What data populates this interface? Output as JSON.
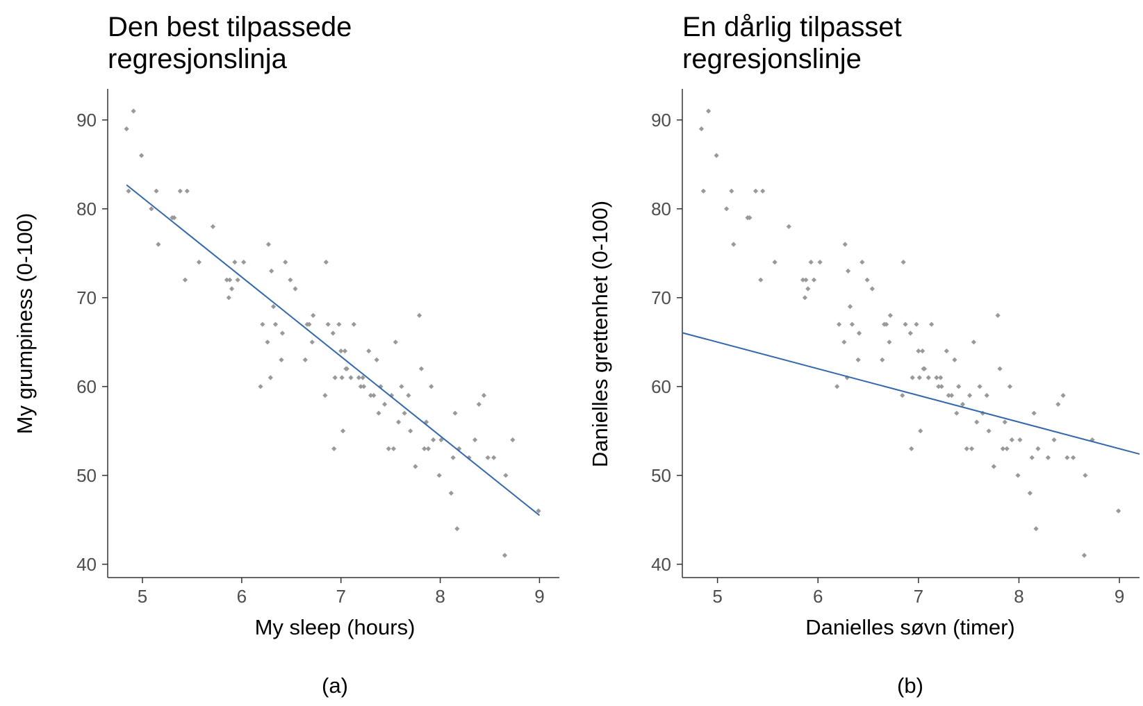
{
  "chart_data": [
    {
      "type": "scatter",
      "title_lines": [
        "Den best tilpassede",
        "regresjonslinja"
      ],
      "xlabel": "My sleep (hours)",
      "ylabel": "My grumpiness (0-100)",
      "caption": "(a)",
      "xlim": [
        4.65,
        9.2
      ],
      "ylim": [
        38.5,
        93.5
      ],
      "xticks": [
        5,
        6,
        7,
        8,
        9
      ],
      "yticks": [
        40,
        50,
        60,
        70,
        80,
        90
      ],
      "line": {
        "intercept": 125.96,
        "slope": -8.94,
        "x_from": 4.84,
        "x_to": 9.0,
        "color": "#3366aa"
      },
      "points": [
        [
          4.84,
          89
        ],
        [
          4.86,
          82
        ],
        [
          4.91,
          91
        ],
        [
          4.99,
          86
        ],
        [
          5.09,
          80
        ],
        [
          5.14,
          82
        ],
        [
          5.16,
          76
        ],
        [
          5.3,
          79
        ],
        [
          5.32,
          79
        ],
        [
          5.38,
          82
        ],
        [
          5.43,
          72
        ],
        [
          5.45,
          82
        ],
        [
          5.57,
          74
        ],
        [
          5.71,
          78
        ],
        [
          5.85,
          72
        ],
        [
          5.87,
          70
        ],
        [
          5.88,
          72
        ],
        [
          5.9,
          71
        ],
        [
          5.93,
          74
        ],
        [
          5.96,
          72
        ],
        [
          6.02,
          74
        ],
        [
          6.19,
          60
        ],
        [
          6.21,
          67
        ],
        [
          6.26,
          65
        ],
        [
          6.27,
          76
        ],
        [
          6.29,
          61
        ],
        [
          6.3,
          73
        ],
        [
          6.32,
          69
        ],
        [
          6.34,
          67
        ],
        [
          6.4,
          63
        ],
        [
          6.41,
          66
        ],
        [
          6.44,
          74
        ],
        [
          6.49,
          72
        ],
        [
          6.54,
          71
        ],
        [
          6.64,
          63
        ],
        [
          6.66,
          67
        ],
        [
          6.68,
          67
        ],
        [
          6.71,
          65
        ],
        [
          6.72,
          68
        ],
        [
          6.85,
          74
        ],
        [
          6.87,
          67
        ],
        [
          6.84,
          59
        ],
        [
          6.92,
          66
        ],
        [
          6.93,
          53
        ],
        [
          6.94,
          61
        ],
        [
          6.98,
          67
        ],
        [
          7.0,
          64
        ],
        [
          7.02,
          55
        ],
        [
          7.01,
          61
        ],
        [
          7.04,
          64
        ],
        [
          7.05,
          62
        ],
        [
          7.06,
          62
        ],
        [
          7.1,
          61
        ],
        [
          7.13,
          67
        ],
        [
          7.18,
          61
        ],
        [
          7.2,
          60
        ],
        [
          7.22,
          61
        ],
        [
          7.23,
          60
        ],
        [
          7.28,
          64
        ],
        [
          7.3,
          59
        ],
        [
          7.33,
          59
        ],
        [
          7.36,
          63
        ],
        [
          7.38,
          57
        ],
        [
          7.4,
          60
        ],
        [
          7.44,
          58
        ],
        [
          7.48,
          53
        ],
        [
          7.51,
          59
        ],
        [
          7.53,
          53
        ],
        [
          7.55,
          65
        ],
        [
          7.58,
          56
        ],
        [
          7.61,
          60
        ],
        [
          7.64,
          57
        ],
        [
          7.68,
          59
        ],
        [
          7.7,
          55
        ],
        [
          7.75,
          51
        ],
        [
          7.79,
          68
        ],
        [
          7.81,
          62
        ],
        [
          7.84,
          53
        ],
        [
          7.86,
          56
        ],
        [
          7.88,
          53
        ],
        [
          7.91,
          60
        ],
        [
          7.93,
          54
        ],
        [
          7.99,
          50
        ],
        [
          8.01,
          54
        ],
        [
          8.11,
          48
        ],
        [
          8.13,
          52
        ],
        [
          8.15,
          57
        ],
        [
          8.17,
          44
        ],
        [
          8.19,
          53
        ],
        [
          8.29,
          52
        ],
        [
          8.35,
          54
        ],
        [
          8.39,
          58
        ],
        [
          8.44,
          59
        ],
        [
          8.48,
          52
        ],
        [
          8.54,
          52
        ],
        [
          8.65,
          41
        ],
        [
          8.66,
          50
        ],
        [
          8.73,
          54
        ],
        [
          8.99,
          46
        ]
      ]
    },
    {
      "type": "scatter",
      "title_lines": [
        "En dårlig tilpasset",
        "regresjonslinje"
      ],
      "xlabel": "Danielles søvn (timer)",
      "ylabel": "Danielles grettenhet (0-100)",
      "caption": "(b)",
      "xlim": [
        4.65,
        9.2
      ],
      "ylim": [
        38.5,
        93.5
      ],
      "xticks": [
        5,
        6,
        7,
        8,
        9
      ],
      "yticks": [
        40,
        50,
        60,
        70,
        80,
        90
      ],
      "line": {
        "intercept": 80.0,
        "slope": -3.0,
        "x_from": 4.65,
        "x_to": 9.2,
        "color": "#3366aa"
      },
      "points": [
        [
          4.84,
          89
        ],
        [
          4.86,
          82
        ],
        [
          4.91,
          91
        ],
        [
          4.99,
          86
        ],
        [
          5.09,
          80
        ],
        [
          5.14,
          82
        ],
        [
          5.16,
          76
        ],
        [
          5.3,
          79
        ],
        [
          5.32,
          79
        ],
        [
          5.38,
          82
        ],
        [
          5.43,
          72
        ],
        [
          5.45,
          82
        ],
        [
          5.57,
          74
        ],
        [
          5.71,
          78
        ],
        [
          5.85,
          72
        ],
        [
          5.87,
          70
        ],
        [
          5.88,
          72
        ],
        [
          5.9,
          71
        ],
        [
          5.93,
          74
        ],
        [
          5.96,
          72
        ],
        [
          6.02,
          74
        ],
        [
          6.19,
          60
        ],
        [
          6.21,
          67
        ],
        [
          6.26,
          65
        ],
        [
          6.27,
          76
        ],
        [
          6.29,
          61
        ],
        [
          6.3,
          73
        ],
        [
          6.32,
          69
        ],
        [
          6.34,
          67
        ],
        [
          6.4,
          63
        ],
        [
          6.41,
          66
        ],
        [
          6.44,
          74
        ],
        [
          6.49,
          72
        ],
        [
          6.54,
          71
        ],
        [
          6.64,
          63
        ],
        [
          6.66,
          67
        ],
        [
          6.68,
          67
        ],
        [
          6.71,
          65
        ],
        [
          6.72,
          68
        ],
        [
          6.85,
          74
        ],
        [
          6.87,
          67
        ],
        [
          6.84,
          59
        ],
        [
          6.92,
          66
        ],
        [
          6.93,
          53
        ],
        [
          6.94,
          61
        ],
        [
          6.98,
          67
        ],
        [
          7.0,
          64
        ],
        [
          7.02,
          55
        ],
        [
          7.01,
          61
        ],
        [
          7.04,
          64
        ],
        [
          7.05,
          62
        ],
        [
          7.06,
          62
        ],
        [
          7.1,
          61
        ],
        [
          7.13,
          67
        ],
        [
          7.18,
          61
        ],
        [
          7.2,
          60
        ],
        [
          7.22,
          61
        ],
        [
          7.23,
          60
        ],
        [
          7.28,
          64
        ],
        [
          7.3,
          59
        ],
        [
          7.33,
          59
        ],
        [
          7.36,
          63
        ],
        [
          7.38,
          57
        ],
        [
          7.4,
          60
        ],
        [
          7.44,
          58
        ],
        [
          7.48,
          53
        ],
        [
          7.51,
          59
        ],
        [
          7.53,
          53
        ],
        [
          7.55,
          65
        ],
        [
          7.58,
          56
        ],
        [
          7.61,
          60
        ],
        [
          7.64,
          57
        ],
        [
          7.68,
          59
        ],
        [
          7.7,
          55
        ],
        [
          7.75,
          51
        ],
        [
          7.79,
          68
        ],
        [
          7.81,
          62
        ],
        [
          7.84,
          53
        ],
        [
          7.86,
          56
        ],
        [
          7.88,
          53
        ],
        [
          7.91,
          60
        ],
        [
          7.93,
          54
        ],
        [
          7.99,
          50
        ],
        [
          8.01,
          54
        ],
        [
          8.11,
          48
        ],
        [
          8.13,
          52
        ],
        [
          8.15,
          57
        ],
        [
          8.17,
          44
        ],
        [
          8.19,
          53
        ],
        [
          8.29,
          52
        ],
        [
          8.35,
          54
        ],
        [
          8.39,
          58
        ],
        [
          8.44,
          59
        ],
        [
          8.48,
          52
        ],
        [
          8.54,
          52
        ],
        [
          8.65,
          41
        ],
        [
          8.66,
          50
        ],
        [
          8.73,
          54
        ],
        [
          8.99,
          46
        ]
      ]
    }
  ]
}
